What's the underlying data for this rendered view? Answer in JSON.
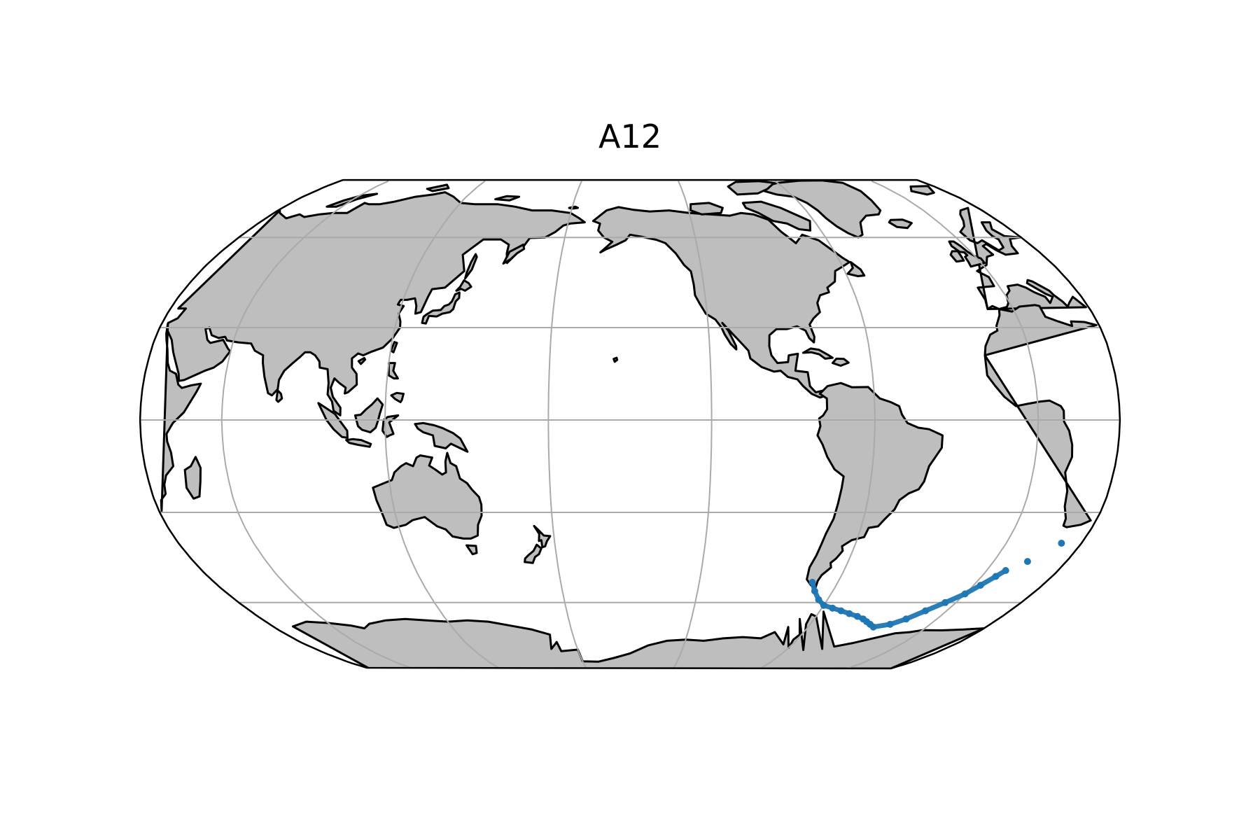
{
  "title": "A12",
  "map": {
    "projection": "robinson",
    "central_longitude": -150,
    "graticule": {
      "meridian_step_deg": 60,
      "parallel_step_deg": 30
    },
    "colors": {
      "land": "#bebebe",
      "coast": "#000000",
      "grid": "#aaaaaa",
      "track": "#1f77b4",
      "ocean": "#ffffff"
    }
  },
  "track": {
    "name": "",
    "points": [
      [
        -71,
        -53
      ],
      [
        -68,
        -56
      ],
      [
        -64,
        -59
      ],
      [
        -60,
        -61
      ],
      [
        -55,
        -62
      ],
      [
        -50,
        -63
      ],
      [
        -45,
        -64
      ],
      [
        -40,
        -65
      ],
      [
        -36,
        -66
      ],
      [
        -33,
        -67
      ],
      [
        -30,
        -68
      ],
      [
        -27,
        -69
      ],
      [
        -20,
        -68
      ],
      [
        -15,
        -66
      ],
      [
        -10,
        -63
      ],
      [
        -5,
        -60
      ],
      [
        0,
        -57
      ],
      [
        3,
        -54
      ],
      [
        6,
        -51
      ],
      [
        8,
        -49
      ],
      [
        14,
        -46
      ],
      [
        22,
        -40
      ]
    ]
  }
}
